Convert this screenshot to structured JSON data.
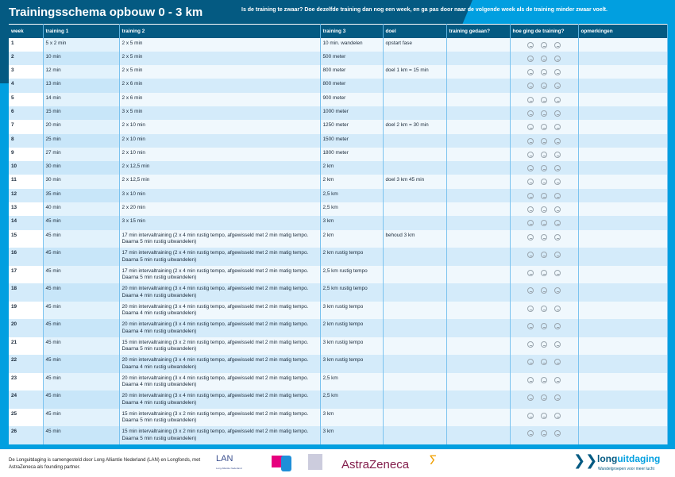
{
  "title": "Trainingsschema opbouw 0 - 3 km",
  "subtitle": "Is de training te zwaar? Doe dezelfde training dan nog een week, en ga pas door naar de volgende week als de training minder zwaar voelt.",
  "columns": [
    "week",
    "training 1",
    "training 2",
    "training 3",
    "doel",
    "training gedaan?",
    "hoe ging de training?",
    "opmerkingen"
  ],
  "rows": [
    {
      "week": "1",
      "t1": "5 x 2 min",
      "t2": "2 x 5 min",
      "t3": "10 min.  wandelen",
      "doel": "opstart  fase"
    },
    {
      "week": "2",
      "t1": "10 min",
      "t2": "2 x 5 min",
      "t3": "500 meter",
      "doel": ""
    },
    {
      "week": "3",
      "t1": "12 min",
      "t2": "2 x 5 min",
      "t3": "800 meter",
      "doel": "doel 1 km = 15 min"
    },
    {
      "week": "4",
      "t1": "13 min",
      "t2": "2 x 6 min",
      "t3": "800 meter",
      "doel": ""
    },
    {
      "week": "5",
      "t1": "14 min",
      "t2": "2 x 6 min",
      "t3": "900 meter",
      "doel": ""
    },
    {
      "week": "6",
      "t1": "15 min",
      "t2": "3 x 5 min",
      "t3": "1000 meter",
      "doel": ""
    },
    {
      "week": "7",
      "t1": "20 min",
      "t2": "2 x 10 min",
      "t3": "1250 meter",
      "doel": "doel 2 km = 30 min"
    },
    {
      "week": "8",
      "t1": "25 min",
      "t2": "2 x 10 min",
      "t3": "1500 meter",
      "doel": ""
    },
    {
      "week": "9",
      "t1": "27 min",
      "t2": "2 x 10 min",
      "t3": "1800 meter",
      "doel": ""
    },
    {
      "week": "10",
      "t1": "30 min",
      "t2": "2 x 12,5 min",
      "t3": "2 km",
      "doel": ""
    },
    {
      "week": "11",
      "t1": "30 min",
      "t2": "2 x 12,5 min",
      "t3": "2 km",
      "doel": "doel 3 km 45 min"
    },
    {
      "week": "12",
      "t1": "35 min",
      "t2": "3 x 10 min",
      "t3": "2,5 km",
      "doel": ""
    },
    {
      "week": "13",
      "t1": "40 min",
      "t2": "2 x 20 min",
      "t3": "2,5 km",
      "doel": ""
    },
    {
      "week": "14",
      "t1": "45 min",
      "t2": "3 x 15 min",
      "t3": "3 km",
      "doel": ""
    },
    {
      "week": "15",
      "t1": "45 min",
      "t2": "17 min intervaltraining (2 x 4 min rustig tempo, afgewisseld met 2 min matig tempo. Daarna 5 min rustig uitwandelen)",
      "t3": "2 km",
      "doel": "behoud 3 km"
    },
    {
      "week": "16",
      "t1": "45 min",
      "t2": "17 min intervaltraining (2 x 4 min rustig tempo, afgewisseld met 2 min matig tempo. Daarna 5 min rustig uitwandelen)",
      "t3": "2 km rustig tempo",
      "doel": ""
    },
    {
      "week": "17",
      "t1": "45 min",
      "t2": "17 min intervaltraining (2 x 4 min rustig tempo, afgewisseld met 2 min matig tempo. Daarna 5 min rustig uitwandelen)",
      "t3": "2,5 km rustig tempo",
      "doel": ""
    },
    {
      "week": "18",
      "t1": "45 min",
      "t2": "20 min intervaltraining (3 x 4 min rustig tempo, afgewisseld met 2 min matig tempo. Daarna 4 min rustig uitwandelen)",
      "t3": "2,5 km rustig tempo",
      "doel": ""
    },
    {
      "week": "19",
      "t1": "45 min",
      "t2": "20 min intervaltraining (3 x 4 min rustig tempo, afgewisseld met 2 min matig tempo. Daarna 4 min rustig uitwandelen)",
      "t3": "3 km rustig tempo",
      "doel": ""
    },
    {
      "week": "20",
      "t1": "45 min",
      "t2": "20 min intervaltraining (3 x 4 min rustig tempo, afgewisseld met 2 min matig tempo. Daarna 4 min rustig uitwandelen)",
      "t3": "2 km rustig tempo",
      "doel": ""
    },
    {
      "week": "21",
      "t1": "45 min",
      "t2": "15 min intervaltraining (3 x 2 min rustig tempo, afgewisseld met 2 min matig tempo. Daarna 5 min rustig uitwandelen)",
      "t3": "3 km rustig tempo",
      "doel": ""
    },
    {
      "week": "22",
      "t1": "45 min",
      "t2": "20 min intervaltraining (3 x 4 min rustig tempo, afgewisseld met 2 min matig tempo. Daarna 4 min rustig uitwandelen)",
      "t3": "3 km rustig tempo",
      "doel": ""
    },
    {
      "week": "23",
      "t1": "45 min",
      "t2": "20 min intervaltraining (3 x 4 min rustig tempo, afgewisseld met 2 min matig tempo. Daarna 4 min rustig uitwandelen)",
      "t3": "2,5 km",
      "doel": ""
    },
    {
      "week": "24",
      "t1": "45 min",
      "t2": "20 min intervaltraining (3 x 4 min rustig tempo, afgewisseld met 2 min matig tempo. Daarna 4 min rustig uitwandelen)",
      "t3": "2,5 km",
      "doel": ""
    },
    {
      "week": "25",
      "t1": "45 min",
      "t2": "15 min intervaltraining (3 x 2 min rustig tempo, afgewisseld met 2 min matig tempo. Daarna 5 min rustig uitwandelen)",
      "t3": "3 km",
      "doel": ""
    },
    {
      "week": "26",
      "t1": "45 min",
      "t2": "15 min intervaltraining (3 x 2 min rustig tempo, afgewisseld met 2 min matig tempo. Daarna 5 min rustig uitwandelen)",
      "t3": "3 km",
      "doel": ""
    }
  ],
  "footer": {
    "text": "De Longuitdaging is samengesteld door Long Alliantie Nederland (LAN) en Longfonds, met AstraZeneca als founding partner.",
    "lan": "LAN",
    "lan_sub": "Long Alliantie Nederland",
    "astrazeneca": "AstraZeneca",
    "brand_a": "long",
    "brand_b": "uitdaging",
    "brand_tagline": "Wandelgroepen voor meer lucht"
  },
  "colors": {
    "dark_blue": "#045a82",
    "bright_blue": "#019fe0"
  }
}
